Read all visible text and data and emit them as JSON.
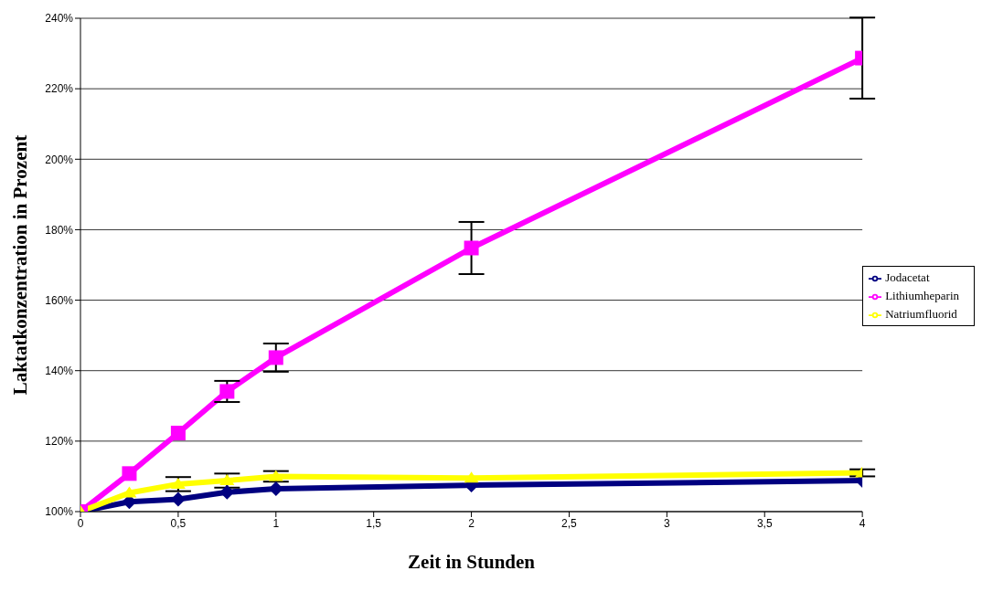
{
  "chart_data": {
    "type": "line",
    "xlabel": "Zeit in Stunden",
    "ylabel": "Laktatkonzentration in Prozent",
    "x": [
      0,
      0.25,
      0.5,
      0.75,
      1,
      2,
      4
    ],
    "xlim": [
      0,
      4
    ],
    "xticks": [
      0,
      {
        "value": 0.5,
        "label": "0,5"
      },
      1,
      {
        "value": 1.5,
        "label": "1,5"
      },
      2,
      {
        "value": 2.5,
        "label": "2,5"
      },
      3,
      {
        "value": 3.5,
        "label": "3,5"
      },
      4
    ],
    "ylim": [
      100,
      240
    ],
    "yticks": [
      {
        "value": 100,
        "label": "100%"
      },
      {
        "value": 120,
        "label": "120%"
      },
      {
        "value": 140,
        "label": "140%"
      },
      {
        "value": 160,
        "label": "160%"
      },
      {
        "value": 180,
        "label": "180%"
      },
      {
        "value": 200,
        "label": "200%"
      },
      {
        "value": 220,
        "label": "220%"
      },
      {
        "value": 240,
        "label": "240%"
      }
    ],
    "grid": "y",
    "legend": "right",
    "series": [
      {
        "name": "Jodacetat",
        "color": "#000080",
        "marker": "diamond",
        "values": [
          100,
          102.8,
          103.5,
          105.5,
          106.5,
          107.5,
          108.8
        ]
      },
      {
        "name": "Lithiumheparin",
        "color": "#ff00ff",
        "marker": "square",
        "values": [
          100,
          110.8,
          122.3,
          134.1,
          143.7,
          174.8,
          228.7
        ],
        "errors": [
          null,
          null,
          null,
          3,
          4,
          7.4,
          11.5
        ]
      },
      {
        "name": "Natriumfluorid",
        "color": "#ffff00",
        "marker": "triangle",
        "values": [
          100,
          105.3,
          107.8,
          108.8,
          110,
          109.5,
          111
        ],
        "errors": [
          null,
          null,
          2,
          2,
          1.5,
          null,
          1
        ]
      }
    ]
  }
}
